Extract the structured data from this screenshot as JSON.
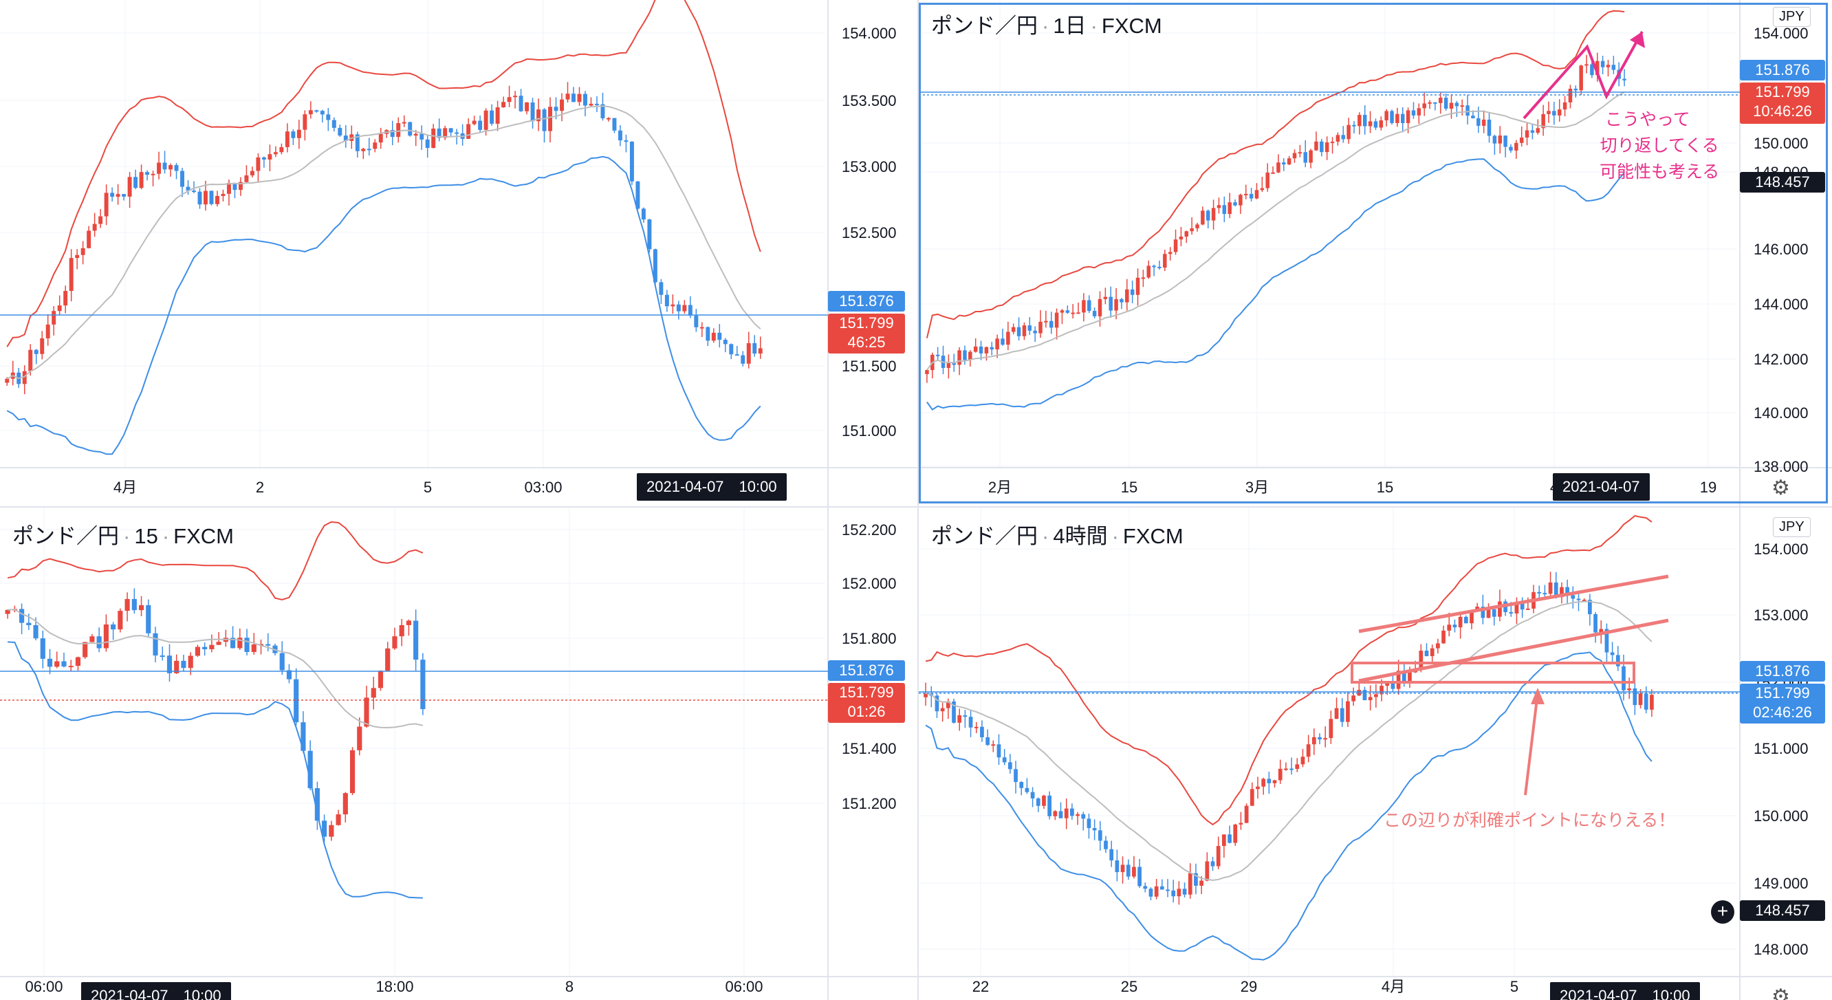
{
  "chart_data": [
    {
      "type": "candlestick",
      "pair": "",
      "interval": "",
      "source": "",
      "y_ticks": [
        "154.000",
        "153.500",
        "153.000",
        "152.500",
        "151.500",
        "151.000"
      ],
      "ylim": [
        150.7,
        154.2
      ],
      "x_ticks": [
        "4月",
        "2",
        "5",
        "03:00"
      ],
      "price_tags": {
        "high": "151.876",
        "last": "151.799",
        "countdown": "46:25"
      },
      "date_label": "2021-04-07　10:00",
      "hline": 151.876,
      "bands": [
        "upper",
        "middle",
        "lower"
      ]
    },
    {
      "type": "candlestick",
      "pair": "ポンド／円",
      "interval": "1日",
      "source": "FXCM",
      "y_ticks": [
        "154.000",
        "150.000",
        "148.000",
        "146.000",
        "144.000",
        "142.000",
        "140.000",
        "138.000"
      ],
      "ylim": [
        137.8,
        155.0
      ],
      "x_ticks": [
        "2月",
        "15",
        "3月",
        "15",
        "4",
        "19"
      ],
      "price_tags": {
        "high": "151.876",
        "last": "151.799",
        "countdown": "10:46:26",
        "extra": "148.457"
      },
      "currency": "JPY",
      "date_label": "2021-04-07",
      "annotation": [
        "こうやって",
        "切り返してくる",
        "可能性も考える"
      ]
    },
    {
      "type": "candlestick",
      "pair": "ポンド／円",
      "interval": "15",
      "source": "FXCM",
      "y_ticks": [
        "152.200",
        "152.000",
        "151.800",
        "151.600",
        "151.400",
        "151.200"
      ],
      "ylim": [
        151.05,
        152.25
      ],
      "x_ticks": [
        "06:00",
        "18:00",
        "8",
        "06:00"
      ],
      "price_tags": {
        "high": "151.876",
        "last": "151.799",
        "countdown": "01:26"
      },
      "date_label": "2021-04-07　10:00"
    },
    {
      "type": "candlestick",
      "pair": "ポンド／円",
      "interval": "4時間",
      "source": "FXCM",
      "y_ticks": [
        "154.000",
        "153.000",
        "152.000",
        "151.000",
        "150.000",
        "149.000",
        "148.000"
      ],
      "ylim": [
        147.7,
        154.3
      ],
      "x_ticks": [
        "22",
        "25",
        "29",
        "4月",
        "5"
      ],
      "price_tags": {
        "high": "151.876",
        "last": "151.799",
        "countdown": "02:46:26",
        "extra": "148.457"
      },
      "currency": "JPY",
      "date_label": "2021-04-07　10:00",
      "annotation": "この辺りが利確ポイントになりえる！"
    }
  ],
  "colors": {
    "bull": "#e8483f",
    "bear": "#3d8ee6",
    "band_upper": "#e8483f",
    "band_lower": "#3d8ee6",
    "band_mid": "#bdbdbd",
    "grid": "#f0f3fa",
    "annot_pink": "#e8308c",
    "annot_salmon": "#ef7a7a"
  },
  "ui": {
    "settings_icon": "gear-icon"
  }
}
